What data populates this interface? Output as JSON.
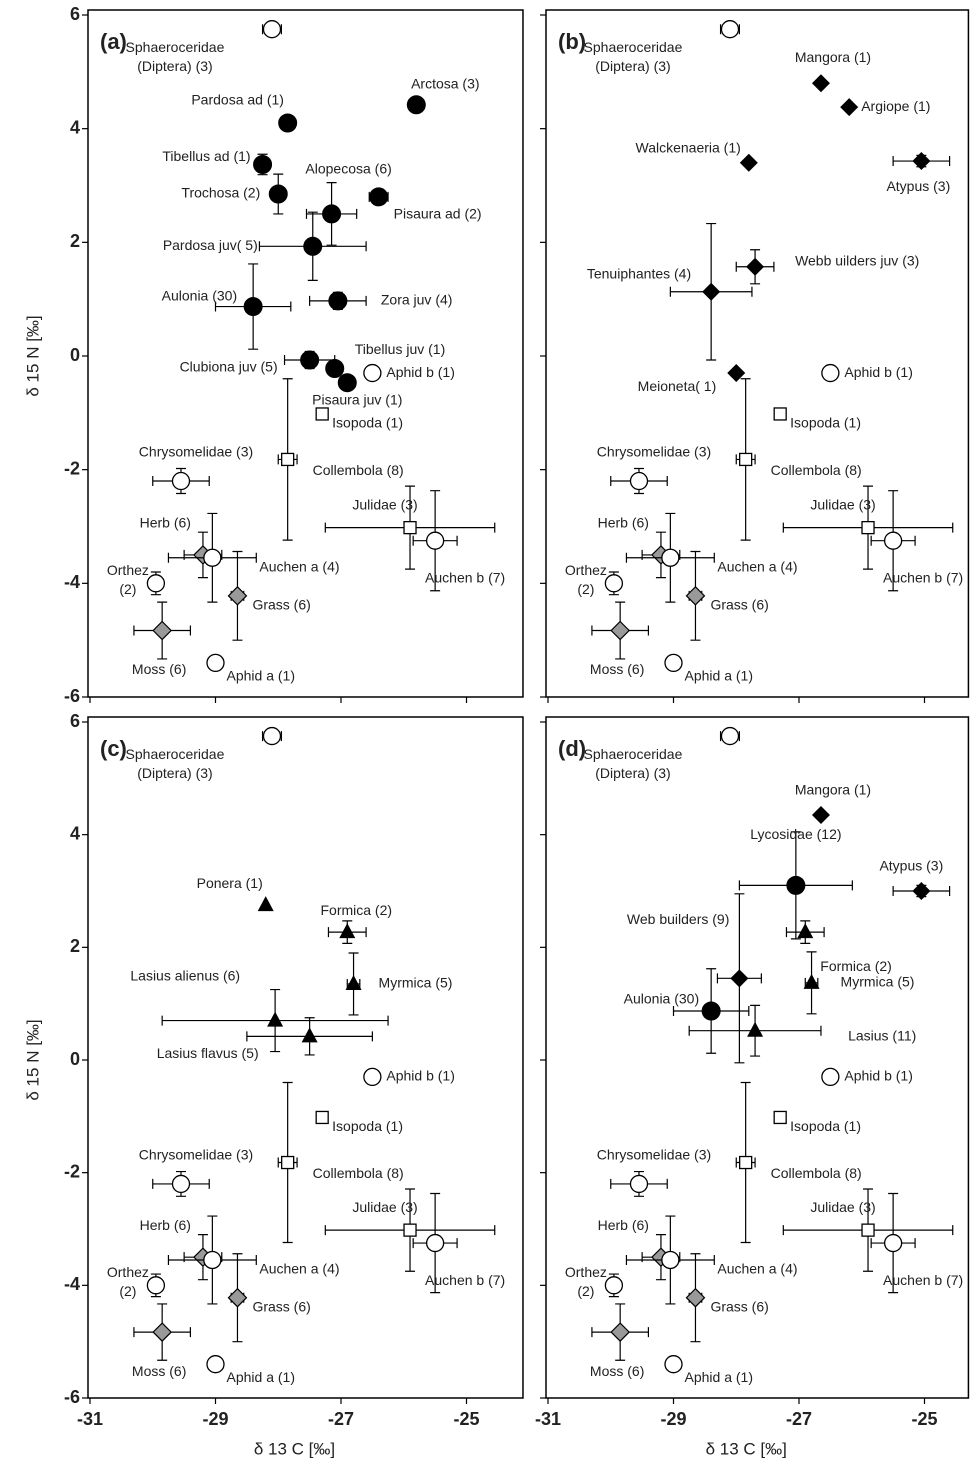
{
  "chart_data": [
    {
      "type": "scatter",
      "title": "(a)",
      "ylabel": "δ 15 N [‰]",
      "xlim": [
        -31,
        -24.1
      ],
      "ylim": [
        -6,
        6
      ],
      "xticks": [
        -31,
        -29,
        -27,
        -25
      ],
      "yticks": [
        -6,
        -4,
        -2,
        0,
        2,
        4,
        6
      ],
      "xtick_labels": false,
      "ytick_labels": true,
      "points": [
        {
          "label": "Arctosa (3)",
          "x": -25.8,
          "y": 4.42,
          "xerr": 0.12,
          "yerr": 0.05,
          "marker": "circle-black"
        },
        {
          "label": "Pardosa ad (1)",
          "x": -27.85,
          "y": 4.1,
          "marker": "circle-black"
        },
        {
          "label": "Tibellus ad (1)",
          "x": -28.25,
          "y": 3.37,
          "yerr": 0.18,
          "marker": "circle-black"
        },
        {
          "label": "Trochosa (2)",
          "x": -28.0,
          "y": 2.85,
          "xerr": 0.1,
          "yerr": 0.35,
          "marker": "circle-black"
        },
        {
          "label": "Alopecosa (6)",
          "x": -27.15,
          "y": 2.5,
          "xerr": 0.4,
          "yerr": 0.55,
          "marker": "circle-black"
        },
        {
          "label": "Pisaura ad (2)",
          "x": -26.4,
          "y": 2.8,
          "xerr": 0.15,
          "yerr": 0.1,
          "marker": "circle-black"
        },
        {
          "label": "Pardosa juv( 5)",
          "x": -27.45,
          "y": 1.93,
          "xerr": 0.85,
          "yerr": 0.6,
          "marker": "circle-black"
        },
        {
          "label": "Aulonia (30)",
          "x": -28.4,
          "y": 0.87,
          "xerr": 0.6,
          "yerr": 0.75,
          "marker": "circle-black"
        },
        {
          "label": "Zora juv (4)",
          "x": -27.05,
          "y": 0.97,
          "xerr": 0.45,
          "yerr": 0.15,
          "marker": "circle-black"
        },
        {
          "label": "Clubiona juv (5)",
          "x": -27.5,
          "y": -0.07,
          "xerr": 0.4,
          "yerr": 0.15,
          "marker": "circle-black"
        },
        {
          "label": "Tibellus juv (1)",
          "x": -27.1,
          "y": -0.22,
          "marker": "circle-black"
        },
        {
          "label": "Pisaura juv (1)",
          "x": -26.9,
          "y": -0.47,
          "marker": "circle-black"
        },
        {
          "label": [
            "Sphaeroceridae",
            "(Diptera) (3)"
          ],
          "x": -28.1,
          "y": 5.75,
          "xerr": 0.15,
          "marker": "circle-open"
        },
        {
          "label": "Aphid b (1)",
          "x": -26.5,
          "y": -0.3,
          "marker": "circle-open"
        },
        {
          "label": "Isopoda (1)",
          "x": -27.3,
          "y": -1.02,
          "marker": "square-open"
        },
        {
          "label": "Collembola (8)",
          "x": -27.85,
          "y": -1.82,
          "xerr": 0.15,
          "yerr": 1.42,
          "marker": "square-open"
        },
        {
          "label": "Chrysomelidae (3)",
          "x": -29.55,
          "y": -2.2,
          "xerr": 0.45,
          "yerr": 0.22,
          "marker": "circle-open"
        },
        {
          "label": "Julidae (3)",
          "x": -25.9,
          "y": -3.02,
          "xerr": 1.35,
          "yerr": 0.73,
          "marker": "square-open"
        },
        {
          "label": "Auchen b (7)",
          "x": -25.5,
          "y": -3.25,
          "xerr": 0.35,
          "yerr": 0.88,
          "marker": "circle-open"
        },
        {
          "label": "Herb (6)",
          "x": -29.2,
          "y": -3.5,
          "xerr": 0.3,
          "yerr": 0.4,
          "marker": "diamond-gray"
        },
        {
          "label": "Auchen a (4)",
          "x": -29.05,
          "y": -3.55,
          "xerr": 0.7,
          "yerr": 0.78,
          "marker": "circle-open"
        },
        {
          "label": [
            "Orthez",
            "(2)"
          ],
          "x": -29.95,
          "y": -4.0,
          "xerr": 0.1,
          "yerr": 0.2,
          "marker": "circle-open"
        },
        {
          "label": "Grass (6)",
          "x": -28.65,
          "y": -4.22,
          "xerr": 0.1,
          "yerr": 0.78,
          "marker": "diamond-gray"
        },
        {
          "label": "Moss (6)",
          "x": -29.85,
          "y": -4.83,
          "xerr": 0.45,
          "yerr": 0.5,
          "marker": "diamond-gray"
        },
        {
          "label": "Aphid a (1)",
          "x": -29.0,
          "y": -5.4,
          "marker": "circle-open"
        }
      ]
    },
    {
      "type": "scatter",
      "title": "(b)",
      "xlim": [
        -31,
        -24.3
      ],
      "ylim": [
        -6,
        6
      ],
      "xticks": [
        -31,
        -29,
        -27,
        -25
      ],
      "yticks": [
        -6,
        -4,
        -2,
        0,
        2,
        4,
        6
      ],
      "xtick_labels": false,
      "ytick_labels": false,
      "points": [
        {
          "label": "Mangora (1)",
          "x": -26.65,
          "y": 4.8,
          "marker": "diamond-black"
        },
        {
          "label": "Argiope (1)",
          "x": -26.2,
          "y": 4.38,
          "marker": "diamond-black"
        },
        {
          "label": "Walckenaeria (1)",
          "x": -27.8,
          "y": 3.4,
          "marker": "diamond-black"
        },
        {
          "label": "Atypus (3)",
          "x": -25.05,
          "y": 3.43,
          "xerr": 0.45,
          "yerr": 0.1,
          "marker": "diamond-black"
        },
        {
          "label": "Webb uilders juv (3)",
          "x": -27.7,
          "y": 1.57,
          "xerr": 0.3,
          "yerr": 0.3,
          "marker": "diamond-black"
        },
        {
          "label": "Tenuiphantes (4)",
          "x": -28.4,
          "y": 1.13,
          "xerr": 0.65,
          "yerr": 1.2,
          "marker": "diamond-black"
        },
        {
          "label": "Meioneta( 1)",
          "x": -28.0,
          "y": -0.3,
          "marker": "diamond-black"
        },
        {
          "label": [
            "Sphaeroceridae",
            "(Diptera) (3)"
          ],
          "x": -28.1,
          "y": 5.75,
          "xerr": 0.15,
          "marker": "circle-open"
        },
        {
          "label": "Aphid b (1)",
          "x": -26.5,
          "y": -0.3,
          "marker": "circle-open"
        },
        {
          "label": "Isopoda (1)",
          "x": -27.3,
          "y": -1.02,
          "marker": "square-open"
        },
        {
          "label": "Collembola (8)",
          "x": -27.85,
          "y": -1.82,
          "xerr": 0.15,
          "yerr": 1.42,
          "marker": "square-open"
        },
        {
          "label": "Chrysomelidae (3)",
          "x": -29.55,
          "y": -2.2,
          "xerr": 0.45,
          "yerr": 0.22,
          "marker": "circle-open"
        },
        {
          "label": "Julidae (3)",
          "x": -25.9,
          "y": -3.02,
          "xerr": 1.35,
          "yerr": 0.73,
          "marker": "square-open"
        },
        {
          "label": "Auchen b (7)",
          "x": -25.5,
          "y": -3.25,
          "xerr": 0.35,
          "yerr": 0.88,
          "marker": "circle-open"
        },
        {
          "label": "Herb (6)",
          "x": -29.2,
          "y": -3.5,
          "xerr": 0.3,
          "yerr": 0.4,
          "marker": "diamond-gray"
        },
        {
          "label": "Auchen a (4)",
          "x": -29.05,
          "y": -3.55,
          "xerr": 0.7,
          "yerr": 0.78,
          "marker": "circle-open"
        },
        {
          "label": [
            "Orthez",
            "(2)"
          ],
          "x": -29.95,
          "y": -4.0,
          "xerr": 0.1,
          "yerr": 0.2,
          "marker": "circle-open"
        },
        {
          "label": "Grass (6)",
          "x": -28.65,
          "y": -4.22,
          "xerr": 0.1,
          "yerr": 0.78,
          "marker": "diamond-gray"
        },
        {
          "label": "Moss (6)",
          "x": -29.85,
          "y": -4.83,
          "xerr": 0.45,
          "yerr": 0.5,
          "marker": "diamond-gray"
        },
        {
          "label": "Aphid a (1)",
          "x": -29.0,
          "y": -5.4,
          "marker": "circle-open"
        }
      ]
    },
    {
      "type": "scatter",
      "title": "(c)",
      "ylabel": "δ 15 N [‰]",
      "xlabel": "δ 13 C [‰]",
      "xlim": [
        -31,
        -24.1
      ],
      "ylim": [
        -6,
        6
      ],
      "xticks": [
        -31,
        -29,
        -27,
        -25
      ],
      "yticks": [
        -6,
        -4,
        -2,
        0,
        2,
        4,
        6
      ],
      "xtick_labels": true,
      "ytick_labels": true,
      "points": [
        {
          "label": "Ponera (1)",
          "x": -28.2,
          "y": 2.75,
          "marker": "triangle-black"
        },
        {
          "label": "Formica (2)",
          "x": -26.9,
          "y": 2.27,
          "xerr": 0.3,
          "yerr": 0.2,
          "marker": "triangle-black"
        },
        {
          "label": "Myrmica (5)",
          "x": -26.8,
          "y": 1.35,
          "xerr": 0.1,
          "yerr": 0.55,
          "marker": "triangle-black"
        },
        {
          "label": "Lasius alienus (6)",
          "x": -28.05,
          "y": 0.7,
          "xerr": 1.8,
          "yerr": 0.55,
          "marker": "triangle-black"
        },
        {
          "label": "Lasius flavus (5)",
          "x": -27.5,
          "y": 0.42,
          "xerr": 1.0,
          "yerr": 0.33,
          "marker": "triangle-black"
        },
        {
          "label": [
            "Sphaeroceridae",
            "(Diptera) (3)"
          ],
          "x": -28.1,
          "y": 5.75,
          "xerr": 0.15,
          "marker": "circle-open"
        },
        {
          "label": "Aphid b (1)",
          "x": -26.5,
          "y": -0.3,
          "marker": "circle-open"
        },
        {
          "label": "Isopoda (1)",
          "x": -27.3,
          "y": -1.02,
          "marker": "square-open"
        },
        {
          "label": "Collembola (8)",
          "x": -27.85,
          "y": -1.82,
          "xerr": 0.15,
          "yerr": 1.42,
          "marker": "square-open"
        },
        {
          "label": "Chrysomelidae (3)",
          "x": -29.55,
          "y": -2.2,
          "xerr": 0.45,
          "yerr": 0.22,
          "marker": "circle-open"
        },
        {
          "label": "Julidae (3)",
          "x": -25.9,
          "y": -3.02,
          "xerr": 1.35,
          "yerr": 0.73,
          "marker": "square-open"
        },
        {
          "label": "Auchen b (7)",
          "x": -25.5,
          "y": -3.25,
          "xerr": 0.35,
          "yerr": 0.88,
          "marker": "circle-open"
        },
        {
          "label": "Herb (6)",
          "x": -29.2,
          "y": -3.5,
          "xerr": 0.3,
          "yerr": 0.4,
          "marker": "diamond-gray"
        },
        {
          "label": "Auchen a (4)",
          "x": -29.05,
          "y": -3.55,
          "xerr": 0.7,
          "yerr": 0.78,
          "marker": "circle-open"
        },
        {
          "label": [
            "Orthez",
            "(2)"
          ],
          "x": -29.95,
          "y": -4.0,
          "xerr": 0.1,
          "yerr": 0.2,
          "marker": "circle-open"
        },
        {
          "label": "Grass (6)",
          "x": -28.65,
          "y": -4.22,
          "xerr": 0.1,
          "yerr": 0.78,
          "marker": "diamond-gray"
        },
        {
          "label": "Moss (6)",
          "x": -29.85,
          "y": -4.83,
          "xerr": 0.45,
          "yerr": 0.5,
          "marker": "diamond-gray"
        },
        {
          "label": "Aphid a (1)",
          "x": -29.0,
          "y": -5.4,
          "marker": "circle-open"
        }
      ]
    },
    {
      "type": "scatter",
      "title": "(d)",
      "xlabel": "δ 13 C [‰]",
      "xlim": [
        -31,
        -24.3
      ],
      "ylim": [
        -6,
        6
      ],
      "xticks": [
        -31,
        -29,
        -27,
        -25
      ],
      "yticks": [
        -6,
        -4,
        -2,
        0,
        2,
        4,
        6
      ],
      "xtick_labels": true,
      "ytick_labels": false,
      "points": [
        {
          "label": "Mangora (1)",
          "x": -26.65,
          "y": 4.35,
          "marker": "diamond-black"
        },
        {
          "label": "Atypus (3)",
          "x": -25.05,
          "y": 3.0,
          "xerr": 0.45,
          "yerr": 0.1,
          "marker": "diamond-black"
        },
        {
          "label": "Lycosidae (12)",
          "x": -27.05,
          "y": 3.1,
          "xerr": 0.9,
          "yerr": 0.95,
          "marker": "circle-black"
        },
        {
          "label": "Web builders (9)",
          "x": -27.95,
          "y": 1.45,
          "xerr": 0.35,
          "yerr": 1.5,
          "marker": "diamond-black"
        },
        {
          "label": "Formica (2)",
          "x": -26.9,
          "y": 2.27,
          "xerr": 0.3,
          "yerr": 0.2,
          "marker": "triangle-black"
        },
        {
          "label": "Myrmica (5)",
          "x": -26.8,
          "y": 1.37,
          "xerr": 0.1,
          "yerr": 0.55,
          "marker": "triangle-black"
        },
        {
          "label": "Aulonia (30)",
          "x": -28.4,
          "y": 0.87,
          "xerr": 0.6,
          "yerr": 0.75,
          "marker": "circle-black"
        },
        {
          "label": "Lasius (11)",
          "x": -27.7,
          "y": 0.52,
          "xerr": 1.05,
          "yerr": 0.45,
          "marker": "triangle-black"
        },
        {
          "label": [
            "Sphaeroceridae",
            "(Diptera) (3)"
          ],
          "x": -28.1,
          "y": 5.75,
          "xerr": 0.15,
          "marker": "circle-open"
        },
        {
          "label": "Aphid b (1)",
          "x": -26.5,
          "y": -0.3,
          "marker": "circle-open"
        },
        {
          "label": "Isopoda (1)",
          "x": -27.3,
          "y": -1.02,
          "marker": "square-open"
        },
        {
          "label": "Collembola (8)",
          "x": -27.85,
          "y": -1.82,
          "xerr": 0.15,
          "yerr": 1.42,
          "marker": "square-open"
        },
        {
          "label": "Chrysomelidae (3)",
          "x": -29.55,
          "y": -2.2,
          "xerr": 0.45,
          "yerr": 0.22,
          "marker": "circle-open"
        },
        {
          "label": "Julidae (3)",
          "x": -25.9,
          "y": -3.02,
          "xerr": 1.35,
          "yerr": 0.73,
          "marker": "square-open"
        },
        {
          "label": "Auchen b (7)",
          "x": -25.5,
          "y": -3.25,
          "xerr": 0.35,
          "yerr": 0.88,
          "marker": "circle-open"
        },
        {
          "label": "Herb (6)",
          "x": -29.2,
          "y": -3.5,
          "xerr": 0.3,
          "yerr": 0.4,
          "marker": "diamond-gray"
        },
        {
          "label": "Auchen a (4)",
          "x": -29.05,
          "y": -3.55,
          "xerr": 0.7,
          "yerr": 0.78,
          "marker": "circle-open"
        },
        {
          "label": [
            "Orthez",
            "(2)"
          ],
          "x": -29.95,
          "y": -4.0,
          "xerr": 0.1,
          "yerr": 0.2,
          "marker": "circle-open"
        },
        {
          "label": "Grass (6)",
          "x": -28.65,
          "y": -4.22,
          "xerr": 0.1,
          "yerr": 0.78,
          "marker": "diamond-gray"
        },
        {
          "label": "Moss (6)",
          "x": -29.85,
          "y": -4.83,
          "xerr": 0.45,
          "yerr": 0.5,
          "marker": "diamond-gray"
        },
        {
          "label": "Aphid a (1)",
          "x": -29.0,
          "y": -5.4,
          "marker": "circle-open"
        }
      ]
    }
  ]
}
